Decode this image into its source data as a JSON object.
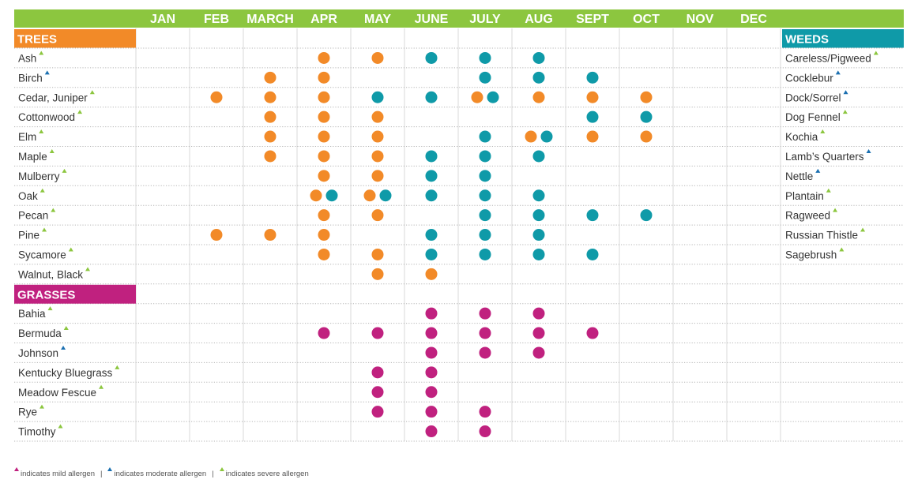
{
  "colors": {
    "header_bar": "#8cc63f",
    "trees": "#f28a28",
    "weeds": "#0f9aa8",
    "grasses": "#c0217f",
    "mild": "#c0217f",
    "moderate": "#1a6fb0",
    "severe": "#8cc63f"
  },
  "chart_data": {
    "type": "table",
    "months": [
      "JAN",
      "FEB",
      "MARCH",
      "APR",
      "MAY",
      "JUNE",
      "JULY",
      "AUG",
      "SEPT",
      "OCT",
      "NOV",
      "DEC"
    ],
    "sections": {
      "trees": {
        "label": "TREES",
        "rows": [
          {
            "name": "Ash",
            "severity": "severe",
            "months": {
              "APR": [
                "trees"
              ],
              "MAY": [
                "trees"
              ],
              "JUNE": [
                "weeds"
              ],
              "JULY": [
                "weeds"
              ],
              "AUG": [
                "weeds"
              ]
            }
          },
          {
            "name": "Birch",
            "severity": "moderate",
            "months": {
              "MARCH": [
                "trees"
              ],
              "APR": [
                "trees"
              ],
              "JULY": [
                "weeds"
              ],
              "AUG": [
                "weeds"
              ],
              "SEPT": [
                "weeds"
              ]
            }
          },
          {
            "name": "Cedar, Juniper",
            "severity": "severe",
            "months": {
              "FEB": [
                "trees"
              ],
              "MARCH": [
                "trees"
              ],
              "APR": [
                "trees"
              ],
              "MAY": [
                "weeds"
              ],
              "JUNE": [
                "weeds"
              ],
              "JULY": [
                "trees",
                "weeds"
              ],
              "AUG": [
                "trees"
              ],
              "SEPT": [
                "trees"
              ],
              "OCT": [
                "trees"
              ]
            }
          },
          {
            "name": "Cottonwood",
            "severity": "severe",
            "months": {
              "MARCH": [
                "trees"
              ],
              "APR": [
                "trees"
              ],
              "MAY": [
                "trees"
              ],
              "SEPT": [
                "weeds"
              ],
              "OCT": [
                "weeds"
              ]
            }
          },
          {
            "name": "Elm",
            "severity": "severe",
            "months": {
              "MARCH": [
                "trees"
              ],
              "APR": [
                "trees"
              ],
              "MAY": [
                "trees"
              ],
              "JULY": [
                "weeds"
              ],
              "AUG": [
                "trees",
                "weeds"
              ],
              "SEPT": [
                "trees"
              ],
              "OCT": [
                "trees"
              ]
            }
          },
          {
            "name": "Maple",
            "severity": "severe",
            "months": {
              "MARCH": [
                "trees"
              ],
              "APR": [
                "trees"
              ],
              "MAY": [
                "trees"
              ],
              "JUNE": [
                "weeds"
              ],
              "JULY": [
                "weeds"
              ],
              "AUG": [
                "weeds"
              ]
            }
          },
          {
            "name": "Mulberry",
            "severity": "severe",
            "months": {
              "APR": [
                "trees"
              ],
              "MAY": [
                "trees"
              ],
              "JUNE": [
                "weeds"
              ],
              "JULY": [
                "weeds"
              ]
            }
          },
          {
            "name": "Oak",
            "severity": "severe",
            "months": {
              "APR": [
                "trees",
                "weeds"
              ],
              "MAY": [
                "trees",
                "weeds"
              ],
              "JUNE": [
                "weeds"
              ],
              "JULY": [
                "weeds"
              ],
              "AUG": [
                "weeds"
              ]
            }
          },
          {
            "name": "Pecan",
            "severity": "severe",
            "months": {
              "APR": [
                "trees"
              ],
              "MAY": [
                "trees"
              ],
              "JULY": [
                "weeds"
              ],
              "AUG": [
                "weeds"
              ],
              "SEPT": [
                "weeds"
              ],
              "OCT": [
                "weeds"
              ]
            }
          },
          {
            "name": "Pine",
            "severity": "severe",
            "months": {
              "FEB": [
                "trees"
              ],
              "MARCH": [
                "trees"
              ],
              "APR": [
                "trees"
              ],
              "JUNE": [
                "weeds"
              ],
              "JULY": [
                "weeds"
              ],
              "AUG": [
                "weeds"
              ]
            }
          },
          {
            "name": "Sycamore",
            "severity": "severe",
            "months": {
              "APR": [
                "trees"
              ],
              "MAY": [
                "trees"
              ],
              "JUNE": [
                "weeds"
              ],
              "JULY": [
                "weeds"
              ],
              "AUG": [
                "weeds"
              ],
              "SEPT": [
                "weeds"
              ]
            }
          },
          {
            "name": "Walnut, Black",
            "severity": "severe",
            "months": {
              "MAY": [
                "trees"
              ],
              "JUNE": [
                "trees"
              ]
            }
          }
        ]
      },
      "grasses": {
        "label": "GRASSES",
        "rows": [
          {
            "name": "Bahia",
            "severity": "severe",
            "months": {
              "JUNE": [
                "grasses"
              ],
              "JULY": [
                "grasses"
              ],
              "AUG": [
                "grasses"
              ]
            }
          },
          {
            "name": "Bermuda",
            "severity": "severe",
            "months": {
              "APR": [
                "grasses"
              ],
              "MAY": [
                "grasses"
              ],
              "JUNE": [
                "grasses"
              ],
              "JULY": [
                "grasses"
              ],
              "AUG": [
                "grasses"
              ],
              "SEPT": [
                "grasses"
              ]
            }
          },
          {
            "name": "Johnson",
            "severity": "moderate",
            "months": {
              "JUNE": [
                "grasses"
              ],
              "JULY": [
                "grasses"
              ],
              "AUG": [
                "grasses"
              ]
            }
          },
          {
            "name": "Kentucky Bluegrass",
            "severity": "severe",
            "months": {
              "MAY": [
                "grasses"
              ],
              "JUNE": [
                "grasses"
              ]
            }
          },
          {
            "name": "Meadow Fescue",
            "severity": "severe",
            "months": {
              "MAY": [
                "grasses"
              ],
              "JUNE": [
                "grasses"
              ]
            }
          },
          {
            "name": "Rye",
            "severity": "severe",
            "months": {
              "MAY": [
                "grasses"
              ],
              "JUNE": [
                "grasses"
              ],
              "JULY": [
                "grasses"
              ]
            }
          },
          {
            "name": "Timothy",
            "severity": "severe",
            "months": {
              "JUNE": [
                "grasses"
              ],
              "JULY": [
                "grasses"
              ]
            }
          }
        ]
      },
      "weeds": {
        "label": "WEEDS",
        "rows": [
          {
            "name": "Careless/Pigweed",
            "severity": "severe"
          },
          {
            "name": "Cocklebur",
            "severity": "moderate"
          },
          {
            "name": "Dock/Sorrel",
            "severity": "moderate"
          },
          {
            "name": "Dog Fennel",
            "severity": "severe"
          },
          {
            "name": "Kochia",
            "severity": "severe"
          },
          {
            "name": "Lamb’s Quarters",
            "severity": "moderate"
          },
          {
            "name": "Nettle",
            "severity": "moderate"
          },
          {
            "name": "Plantain",
            "severity": "severe"
          },
          {
            "name": "Ragweed",
            "severity": "severe"
          },
          {
            "name": "Russian Thistle",
            "severity": "severe"
          },
          {
            "name": "Sagebrush",
            "severity": "severe"
          }
        ]
      }
    }
  },
  "legend": {
    "mild": "indicates mild allergen",
    "moderate": "indicates moderate allergen",
    "severe": "indicates severe allergen",
    "separator": "|"
  }
}
